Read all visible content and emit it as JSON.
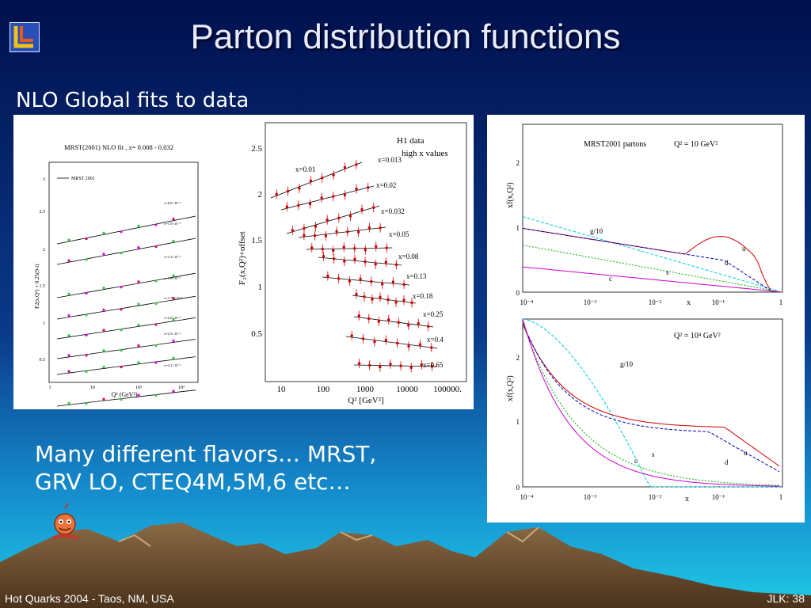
{
  "slide": {
    "title": "Parton distribution functions",
    "subtitle": "NLO Global fits to data",
    "body_lines": [
      "Many different flavors… MRST,",
      "GRV LO, CTEQ4M,5M,6 etc…"
    ],
    "footer_left": "Hot Quarks 2004 - Taos, NM, USA",
    "footer_right": "JLK: 38",
    "colors": {
      "bg_top": "#00104d",
      "bg_mid": "#0a3a8a",
      "bg_bottom": "#15a8d8",
      "mountain": "#6b4a2b"
    }
  },
  "figures": {
    "mrst_f2": {
      "title": "MRST(2001) NLO fit , x= 0.008 - 0.032",
      "legend": "MRST 2001",
      "ylabel": "F2(x,Q²) + 0.25(9-i)",
      "xlabel": "Q² (GeV²)",
      "yticks": [
        "3",
        "2.5",
        "2",
        "1.5",
        "1",
        "0.5"
      ],
      "xticks": [
        "1",
        "10",
        "10²",
        "10³"
      ],
      "curve_labels": [
        "x=8.0×10⁻³",
        "x=1.0×10⁻²",
        "x=1.3×10⁻²",
        "x=1.6×10⁻²",
        "x=1.75×10⁻²",
        "x=2.0×10⁻²",
        "x=2.5×10⁻²",
        "x=3.2×10⁻²"
      ]
    },
    "h1": {
      "title_line1": "H1 data",
      "title_line2": "high x values",
      "ylabel": "F₂(x,Q²)+offset",
      "xlabel": "Q² [GeV²]",
      "yticks": [
        "2.5",
        "2",
        "1.5",
        "1",
        "0.5"
      ],
      "xticks": [
        "10",
        "100",
        "1000",
        "10000",
        "100000."
      ],
      "x_labels": [
        "x=0.01",
        "x=0.013",
        "x=0.02",
        "x=0.032",
        "x=0.05",
        "x=0.08",
        "x=0.13",
        "x=0.18",
        "x=0.25",
        "x=0.4",
        "x=0.65"
      ]
    },
    "partons_low": {
      "title": "MRST2001 partons",
      "q2": "Q² = 10 GeV²",
      "ylabel": "xf(x,Q²)",
      "xlabel": "x",
      "yticks": [
        "2",
        "1",
        "0"
      ],
      "xticks": [
        "10⁻⁴",
        "10⁻³",
        "10⁻²",
        "10⁻¹",
        "1"
      ],
      "labels": {
        "g": "g/10",
        "u": "u",
        "d": "d",
        "s": "s",
        "c": "c"
      }
    },
    "partons_high": {
      "q2": "Q² = 10⁴ GeV²",
      "ylabel": "xf(x,Q²)",
      "xlabel": "x",
      "yticks": [
        "2",
        "1",
        "0"
      ],
      "xticks": [
        "10⁻⁴",
        "10⁻³",
        "10⁻²",
        "10⁻¹",
        "1"
      ],
      "labels": {
        "g": "g/10",
        "u": "u",
        "d": "d",
        "s": "s",
        "c": "c"
      }
    }
  }
}
